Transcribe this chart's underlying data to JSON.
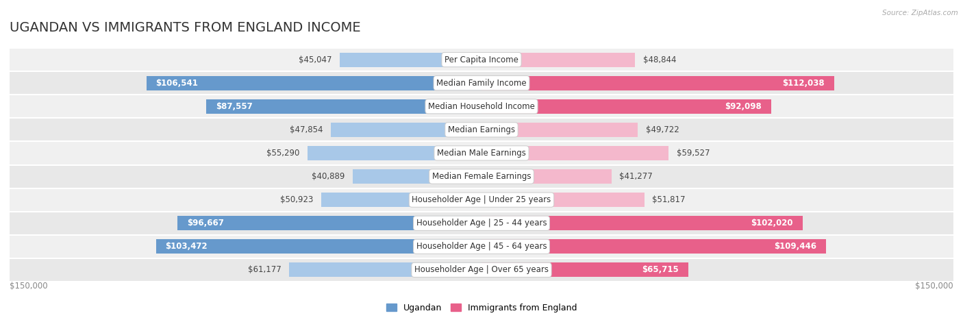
{
  "title": "UGANDAN VS IMMIGRANTS FROM ENGLAND INCOME",
  "source": "Source: ZipAtlas.com",
  "categories": [
    "Per Capita Income",
    "Median Family Income",
    "Median Household Income",
    "Median Earnings",
    "Median Male Earnings",
    "Median Female Earnings",
    "Householder Age | Under 25 years",
    "Householder Age | 25 - 44 years",
    "Householder Age | 45 - 64 years",
    "Householder Age | Over 65 years"
  ],
  "ugandan": [
    45047,
    106541,
    87557,
    47854,
    55290,
    40889,
    50923,
    96667,
    103472,
    61177
  ],
  "england": [
    48844,
    112038,
    92098,
    49722,
    59527,
    41277,
    51817,
    102020,
    109446,
    65715
  ],
  "ugandan_color_light": "#a8c8e8",
  "ugandan_color_dark": "#6699cc",
  "england_color_light": "#f4b8cc",
  "england_color_dark": "#e8608a",
  "bar_height": 0.62,
  "xlim": 150000,
  "title_fontsize": 14,
  "label_fontsize": 8.5,
  "white_label_threshold": 65000
}
